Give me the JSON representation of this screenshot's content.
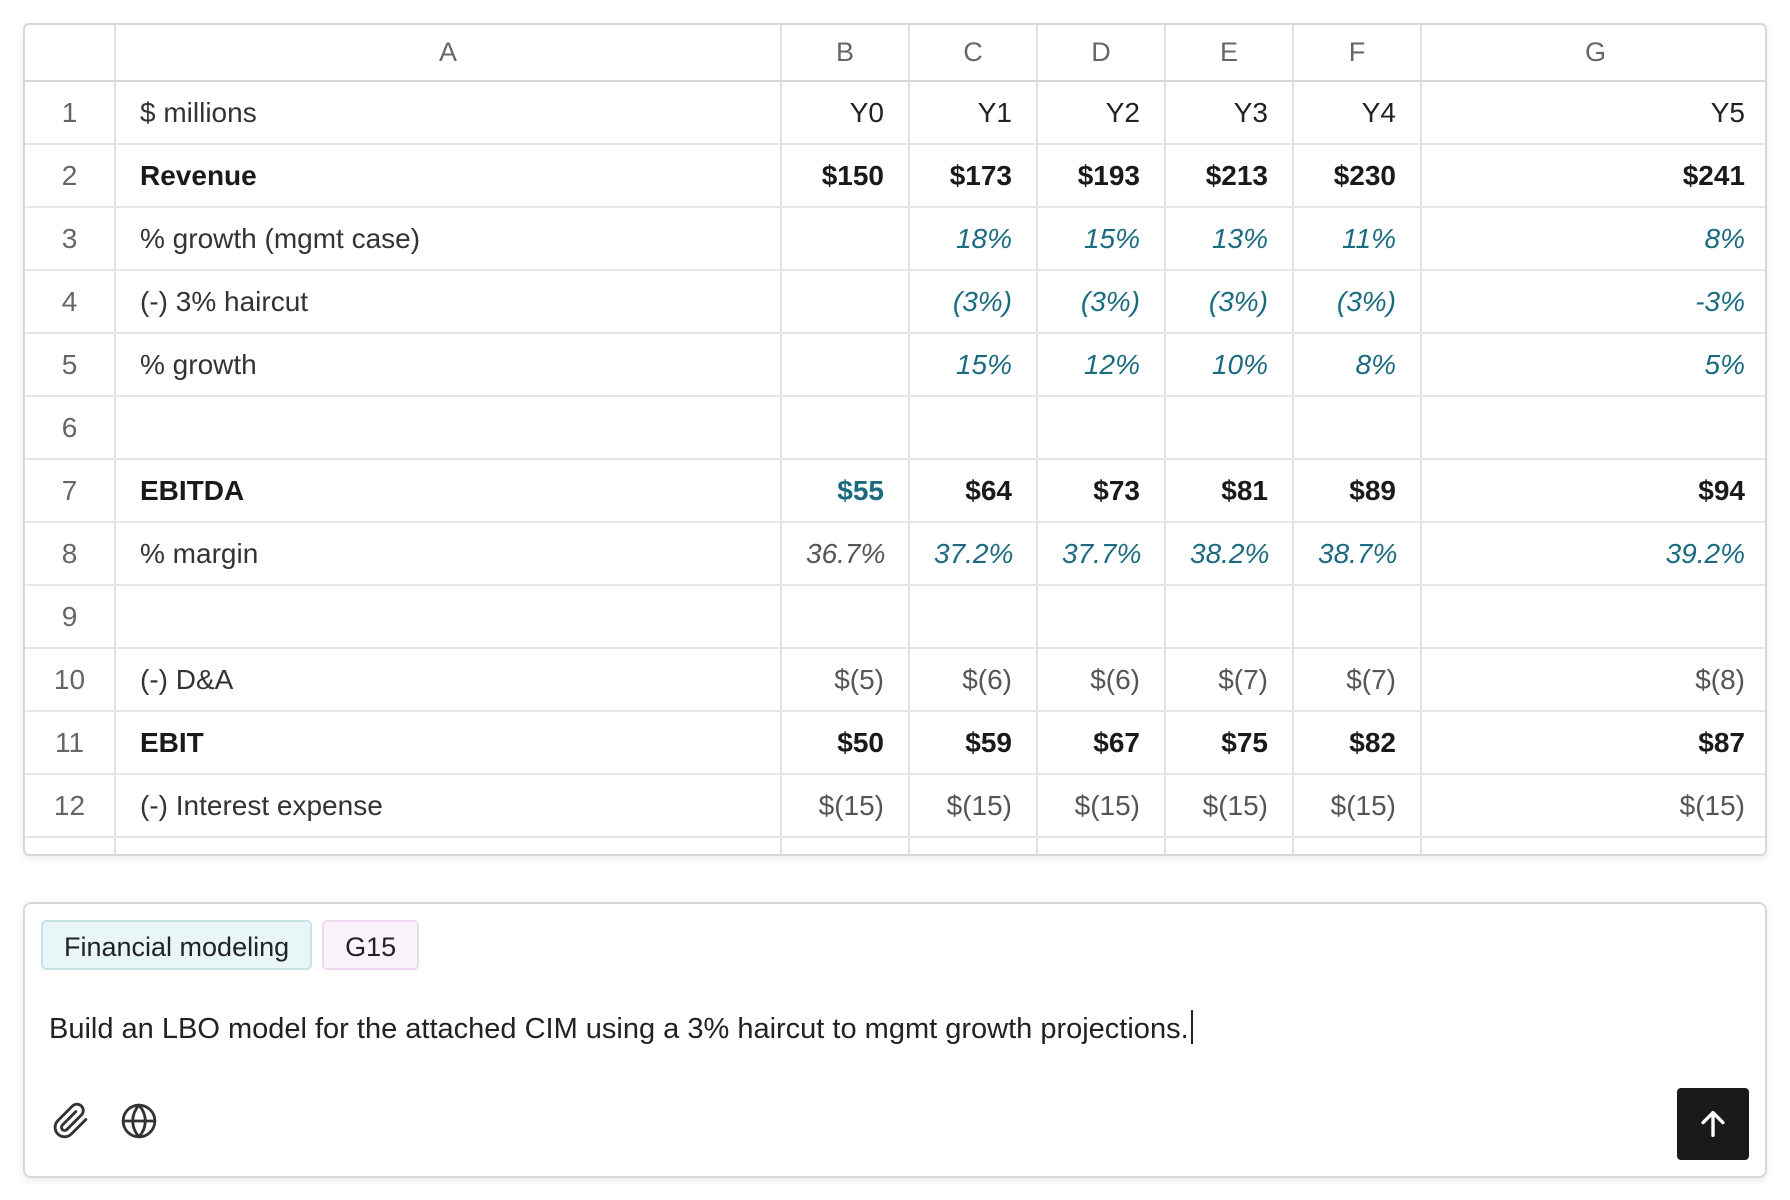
{
  "sheet": {
    "columns": [
      "A",
      "B",
      "C",
      "D",
      "E",
      "F",
      "G"
    ],
    "rows": [
      {
        "n": "1",
        "label": "$ millions",
        "values": [
          "Y0",
          "Y1",
          "Y2",
          "Y3",
          "Y4",
          "Y5"
        ]
      },
      {
        "n": "2",
        "label": "Revenue",
        "values": [
          "$150",
          "$173",
          "$193",
          "$213",
          "$230",
          "$241"
        ]
      },
      {
        "n": "3",
        "label": "% growth (mgmt case)",
        "values": [
          "",
          "18%",
          "15%",
          "13%",
          "11%",
          "8%"
        ]
      },
      {
        "n": "4",
        "label": "(-) 3% haircut",
        "values": [
          "",
          "(3%)",
          "(3%)",
          "(3%)",
          "(3%)",
          "-3%"
        ]
      },
      {
        "n": "5",
        "label": "% growth",
        "values": [
          "",
          "15%",
          "12%",
          "10%",
          "8%",
          "5%"
        ]
      },
      {
        "n": "6",
        "label": "",
        "values": [
          "",
          "",
          "",
          "",
          "",
          ""
        ]
      },
      {
        "n": "7",
        "label": "EBITDA",
        "values": [
          "$55",
          "$64",
          "$73",
          "$81",
          "$89",
          "$94"
        ]
      },
      {
        "n": "8",
        "label": "% margin",
        "values": [
          "36.7%",
          "37.2%",
          "37.7%",
          "38.2%",
          "38.7%",
          "39.2%"
        ]
      },
      {
        "n": "9",
        "label": "",
        "values": [
          "",
          "",
          "",
          "",
          "",
          ""
        ]
      },
      {
        "n": "10",
        "label": "(-) D&A",
        "values": [
          "$(5)",
          "$(6)",
          "$(6)",
          "$(7)",
          "$(7)",
          "$(8)"
        ]
      },
      {
        "n": "11",
        "label": "EBIT",
        "values": [
          "$50",
          "$59",
          "$67",
          "$75",
          "$82",
          "$87"
        ]
      },
      {
        "n": "12",
        "label": "(-) Interest expense",
        "values": [
          "$(15)",
          "$(15)",
          "$(15)",
          "$(15)",
          "$(15)",
          "$(15)"
        ]
      }
    ],
    "colors": {
      "input_blue": "#1a6b80",
      "text": "#222222",
      "grid": "#e0e0e0"
    }
  },
  "composer": {
    "chips": {
      "context": "Financial modeling",
      "cell": "G15"
    },
    "prompt_text": "Build an LBO model for the attached CIM using a 3% haircut to mgmt growth projections.",
    "icons": {
      "attach": "paperclip-icon",
      "web": "globe-icon",
      "send": "arrow-up-icon"
    }
  }
}
